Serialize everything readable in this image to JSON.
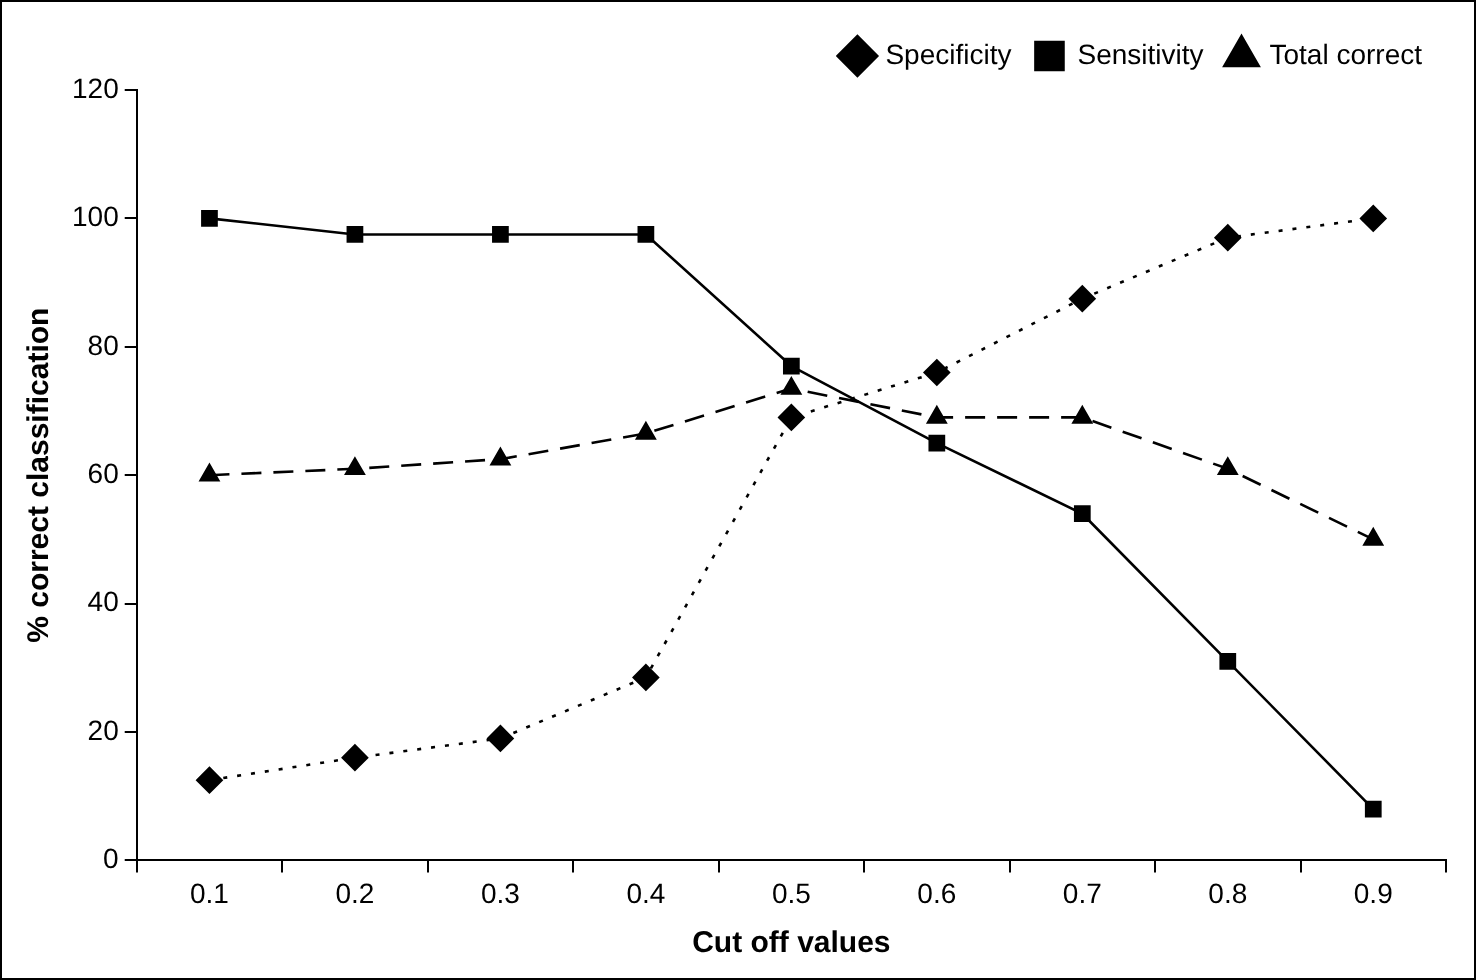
{
  "chart_data": {
    "type": "line",
    "xlabel": "Cut off values",
    "ylabel": "% correct classification",
    "categories": [
      "0.1",
      "0.2",
      "0.3",
      "0.4",
      "0.5",
      "0.6",
      "0.7",
      "0.8",
      "0.9"
    ],
    "series": [
      {
        "name": "Specificity",
        "color": "#000000",
        "marker": "diamond",
        "line_style": "dotted",
        "values": [
          12.5,
          16,
          19,
          28.5,
          69,
          76,
          87.5,
          97,
          100
        ]
      },
      {
        "name": "Sensitivity",
        "color": "#000000",
        "marker": "square",
        "line_style": "solid",
        "values": [
          100,
          97.5,
          97.5,
          97.5,
          77,
          65,
          54,
          31,
          8
        ]
      },
      {
        "name": "Total correct",
        "color": "#000000",
        "marker": "triangle",
        "line_style": "dashed",
        "values": [
          60,
          61,
          62.5,
          66.5,
          73.5,
          69,
          69,
          61,
          50
        ]
      }
    ],
    "ylim": [
      0,
      120
    ],
    "yticks": [
      0,
      20,
      40,
      60,
      80,
      100,
      120
    ],
    "grid": false,
    "legend": "top right"
  }
}
